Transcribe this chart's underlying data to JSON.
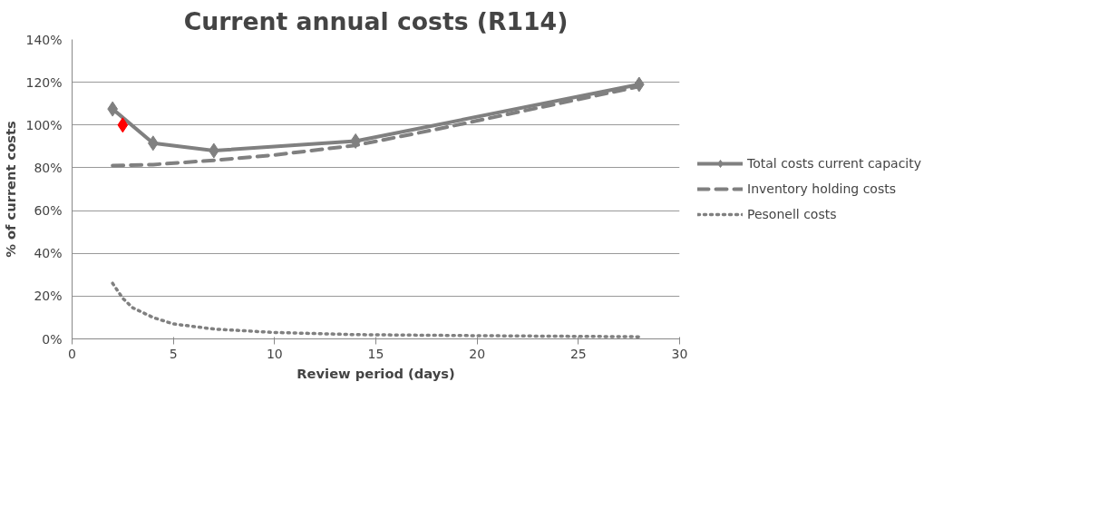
{
  "chart_data": {
    "type": "line",
    "title": "Current annual costs (R114)",
    "xlabel": "Review period (days)",
    "ylabel": "% of current costs",
    "xlim": [
      0,
      30
    ],
    "xticks": [
      0,
      5,
      10,
      15,
      20,
      25,
      30
    ],
    "ylim": [
      0,
      140
    ],
    "yticks": [
      {
        "value": 0,
        "label": "0%"
      },
      {
        "value": 20,
        "label": "20%"
      },
      {
        "value": 40,
        "label": "40%"
      },
      {
        "value": 60,
        "label": "60%"
      },
      {
        "value": 80,
        "label": "80%"
      },
      {
        "value": 100,
        "label": "100%"
      },
      {
        "value": 120,
        "label": "120%"
      },
      {
        "value": 140,
        "label": "140%"
      }
    ],
    "grid": "y",
    "legend": "right",
    "series": [
      {
        "name": "Total costs current capacity",
        "color": "#808080",
        "marker": "diamond",
        "line_style": "solid",
        "x": [
          2,
          4,
          7,
          14,
          28
        ],
        "values": [
          107.5,
          91.5,
          88,
          92.5,
          119
        ]
      },
      {
        "name": "Inventory holding costs",
        "color": "#808080",
        "marker": "none",
        "line_style": "dashed",
        "x": [
          2,
          4,
          7,
          10,
          14,
          18,
          21,
          28
        ],
        "values": [
          81,
          81.5,
          83.5,
          86,
          90.5,
          98,
          104,
          118
        ]
      },
      {
        "name": "Pesonell costs",
        "color": "#808080",
        "marker": "none",
        "line_style": "dotted",
        "x": [
          2,
          2.5,
          3,
          4,
          5,
          7,
          10,
          14,
          20,
          28
        ],
        "values": [
          26,
          19,
          14.5,
          10,
          7,
          4.6,
          3,
          2,
          1.5,
          1
        ]
      },
      {
        "type": "scatter",
        "color": "#ff0000",
        "marker": "diamond",
        "x": [
          2.5
        ],
        "values": [
          100
        ]
      }
    ]
  }
}
